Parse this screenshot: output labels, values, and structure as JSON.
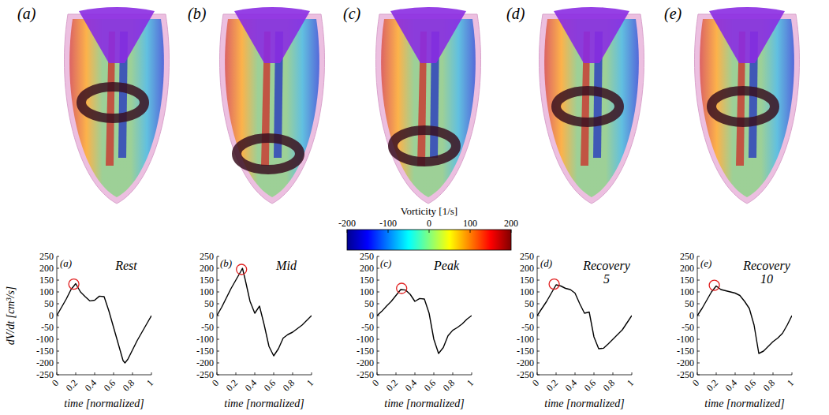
{
  "images": {
    "panel_labels": [
      "(a)",
      "(b)",
      "(c)",
      "(d)",
      "(e)"
    ],
    "colorbar": {
      "title": "Vorticity [1/s]",
      "range": [
        -200,
        200
      ],
      "ticks": [
        -200,
        -100,
        0,
        100,
        200
      ]
    }
  },
  "chart_data": [
    {
      "type": "line",
      "label": "(a)",
      "title": "Rest",
      "color": "#000000",
      "x_label": "time [normalized]",
      "y_label": "dV/dt [cm³/s]",
      "x": [
        0,
        0.05,
        0.1,
        0.15,
        0.2,
        0.25,
        0.3,
        0.35,
        0.4,
        0.45,
        0.5,
        0.55,
        0.6,
        0.65,
        0.7,
        0.72,
        0.75,
        0.8,
        0.85,
        0.9,
        0.95,
        1
      ],
      "values": [
        0,
        35,
        70,
        110,
        135,
        100,
        80,
        62,
        65,
        82,
        80,
        20,
        -50,
        -120,
        -190,
        -200,
        -185,
        -145,
        -105,
        -70,
        -35,
        0
      ],
      "highlight": {
        "x": 0.18,
        "y": 133
      },
      "xlim": [
        0,
        1
      ],
      "ylim": [
        -250,
        250
      ],
      "xticks": [
        0,
        0.2,
        0.4,
        0.6,
        0.8,
        1
      ],
      "yticks": [
        -250,
        -200,
        -150,
        -100,
        -50,
        0,
        50,
        100,
        150,
        200,
        250
      ]
    },
    {
      "type": "line",
      "label": "(b)",
      "title": "Mid",
      "color": "#000000",
      "x_label": "time [normalized]",
      "x": [
        0,
        0.05,
        0.1,
        0.15,
        0.2,
        0.25,
        0.27,
        0.3,
        0.35,
        0.4,
        0.45,
        0.5,
        0.55,
        0.6,
        0.65,
        0.7,
        0.75,
        0.8,
        0.85,
        0.9,
        0.95,
        1
      ],
      "values": [
        0,
        35,
        75,
        115,
        150,
        185,
        200,
        150,
        60,
        10,
        40,
        -40,
        -130,
        -170,
        -140,
        -95,
        -80,
        -70,
        -55,
        -40,
        -20,
        0
      ],
      "highlight": {
        "x": 0.26,
        "y": 195
      },
      "xlim": [
        0,
        1
      ],
      "ylim": [
        -250,
        250
      ],
      "xticks": [
        0,
        0.2,
        0.4,
        0.6,
        0.8,
        1
      ],
      "yticks": [
        -250,
        -200,
        -150,
        -100,
        -50,
        0,
        50,
        100,
        150,
        200,
        250
      ]
    },
    {
      "type": "line",
      "label": "(c)",
      "title": "Peak",
      "color": "#000000",
      "x_label": "time [normalized]",
      "x": [
        0,
        0.05,
        0.1,
        0.15,
        0.2,
        0.25,
        0.3,
        0.35,
        0.4,
        0.45,
        0.5,
        0.55,
        0.6,
        0.65,
        0.7,
        0.75,
        0.8,
        0.85,
        0.9,
        0.95,
        1
      ],
      "values": [
        0,
        18,
        40,
        60,
        85,
        110,
        108,
        90,
        60,
        72,
        70,
        10,
        -100,
        -160,
        -135,
        -85,
        -62,
        -50,
        -35,
        -15,
        0
      ],
      "highlight": {
        "x": 0.26,
        "y": 115
      },
      "xlim": [
        0,
        1
      ],
      "ylim": [
        -250,
        250
      ],
      "xticks": [
        0,
        0.2,
        0.4,
        0.6,
        0.8,
        1
      ],
      "yticks": [
        -250,
        -200,
        -150,
        -100,
        -50,
        0,
        50,
        100,
        150,
        200,
        250
      ]
    },
    {
      "type": "line",
      "label": "(d)",
      "title": "Recovery 5",
      "color": "#000000",
      "x_label": "time [normalized]",
      "x": [
        0,
        0.05,
        0.1,
        0.15,
        0.2,
        0.25,
        0.3,
        0.35,
        0.4,
        0.45,
        0.5,
        0.55,
        0.6,
        0.65,
        0.7,
        0.75,
        0.8,
        0.85,
        0.9,
        0.95,
        1
      ],
      "values": [
        0,
        30,
        60,
        95,
        130,
        125,
        115,
        110,
        95,
        50,
        10,
        15,
        -90,
        -140,
        -138,
        -120,
        -100,
        -80,
        -60,
        -30,
        0
      ],
      "highlight": {
        "x": 0.18,
        "y": 133
      },
      "xlim": [
        0,
        1
      ],
      "ylim": [
        -250,
        250
      ],
      "xticks": [
        0,
        0.2,
        0.4,
        0.6,
        0.8,
        1
      ],
      "yticks": [
        -250,
        -200,
        -150,
        -100,
        -50,
        0,
        50,
        100,
        150,
        200,
        250
      ]
    },
    {
      "type": "line",
      "label": "(e)",
      "title": "Recovery 10",
      "color": "#000000",
      "x_label": "time [normalized]",
      "x": [
        0,
        0.05,
        0.1,
        0.15,
        0.2,
        0.25,
        0.3,
        0.35,
        0.4,
        0.45,
        0.5,
        0.55,
        0.6,
        0.65,
        0.7,
        0.75,
        0.8,
        0.85,
        0.9,
        0.95,
        1
      ],
      "values": [
        0,
        30,
        65,
        100,
        125,
        110,
        105,
        100,
        95,
        85,
        60,
        30,
        -40,
        -160,
        -150,
        -130,
        -110,
        -95,
        -75,
        -40,
        0
      ],
      "highlight": {
        "x": 0.18,
        "y": 128
      },
      "xlim": [
        0,
        1
      ],
      "ylim": [
        -250,
        250
      ],
      "xticks": [
        0,
        0.2,
        0.4,
        0.6,
        0.8,
        1
      ],
      "yticks": [
        -250,
        -200,
        -150,
        -100,
        -50,
        0,
        50,
        100,
        150,
        200,
        250
      ]
    }
  ]
}
